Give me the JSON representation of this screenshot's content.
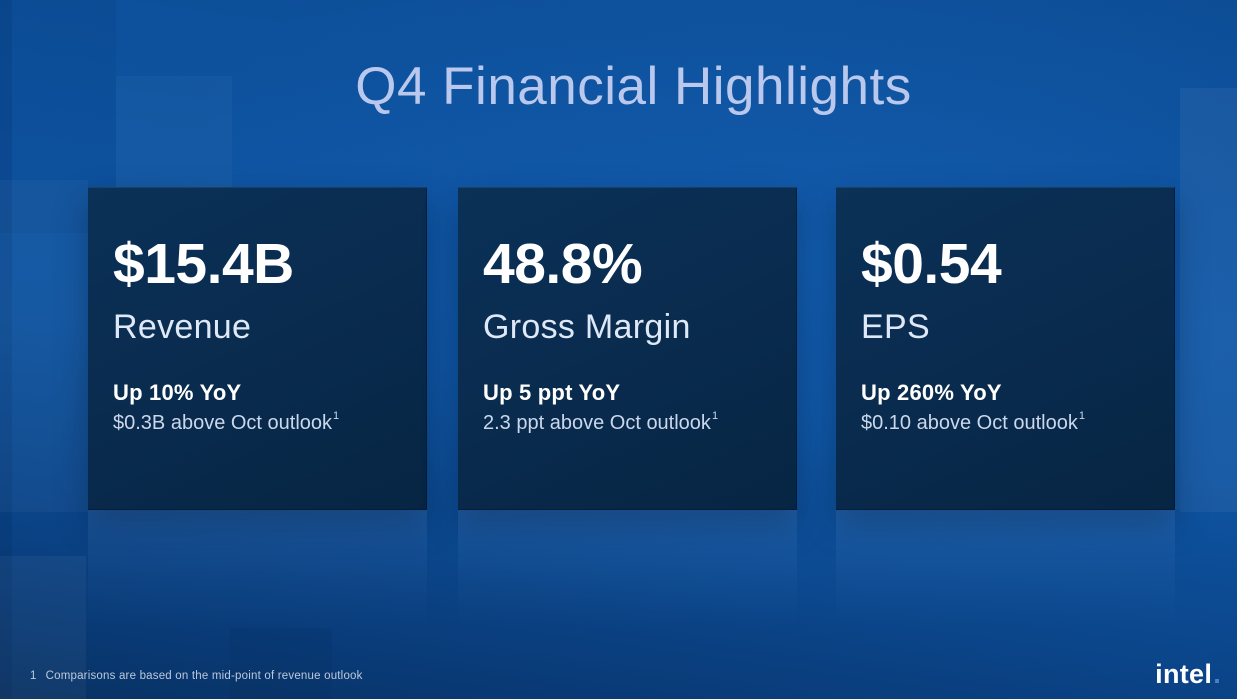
{
  "slide": {
    "title": "Q4 Financial Highlights",
    "cards": [
      {
        "value": "$15.4B",
        "label": "Revenue",
        "change": "Up 10% YoY",
        "detail": "$0.3B above Oct outlook",
        "footnote_marker": "1"
      },
      {
        "value": "48.8%",
        "label": "Gross Margin",
        "change": "Up 5 ppt YoY",
        "detail": "2.3 ppt above Oct outlook",
        "footnote_marker": "1"
      },
      {
        "value": "$0.54",
        "label": "EPS",
        "change": "Up 260% YoY",
        "detail": "$0.10 above Oct outlook",
        "footnote_marker": "1"
      }
    ],
    "footnote": {
      "marker": "1",
      "text": "Comparisons are based on the mid-point of revenue outlook"
    },
    "logo": {
      "text": "intel",
      "period": "."
    },
    "colors": {
      "background_blue": "#0E54A2",
      "card_navy": "#092B4E",
      "title_text": "#B9C8EC",
      "value_text": "#FFFFFF",
      "detail_text": "#CBD7EB",
      "footnote_text": "#BDC9DC",
      "logo_text": "#FFFFFF",
      "logo_dot": "#4A82C8"
    }
  }
}
